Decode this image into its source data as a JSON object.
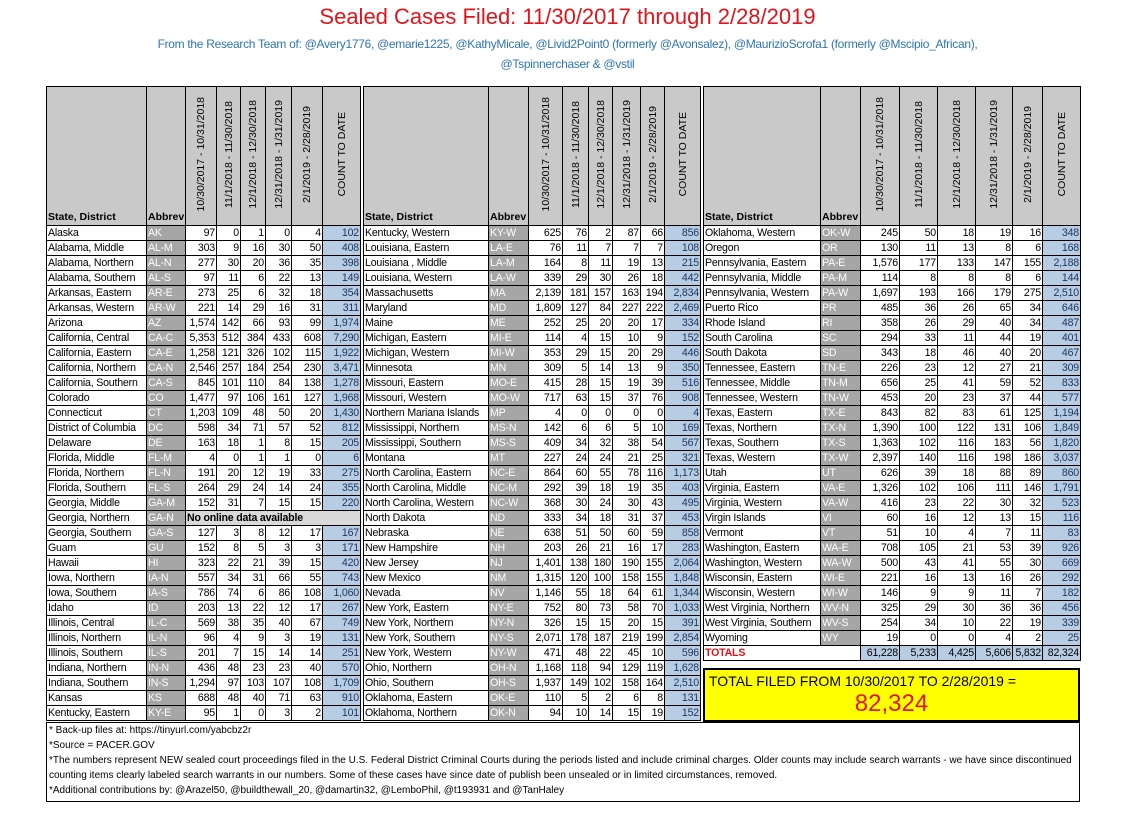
{
  "title": "Sealed Cases Filed: 11/30/2017 through 2/28/2019",
  "subtitle_line1": "From the Research Team of: @Avery1776, @emarie1225, @KathyMicale, @Livid2Point0 (formerly @Avonsalez), @MaurizioScrofa1 (formerly @Mscipio_African),",
  "subtitle_line2": "@Tspinnerchaser & @vstil",
  "columns": [
    "State, District",
    "Abbrev",
    "10/30/2017 - 10/31/2018",
    "11/1/2018 - 11/30/2018",
    "12/1/2018 - 12/30/2018",
    "12/31/2018 - 1/31/2019",
    "2/1/2019 - 2/28/2019",
    "COUNT TO DATE"
  ],
  "colors": {
    "title": "#e3131b",
    "subtitle": "#2e74b5",
    "abbrev_bg": "#a6a6a6",
    "count_bg": "#b8cce4",
    "highlight": "#ffff00"
  },
  "tables": [
    {
      "rows": [
        [
          "Alaska",
          "AK",
          "97",
          "0",
          "1",
          "0",
          "4",
          "102"
        ],
        [
          "Alabama, Middle",
          "AL-M",
          "303",
          "9",
          "16",
          "30",
          "50",
          "408"
        ],
        [
          "Alabama, Northern",
          "AL-N",
          "277",
          "30",
          "20",
          "36",
          "35",
          "398"
        ],
        [
          "Alabama, Southern",
          "AL-S",
          "97",
          "11",
          "6",
          "22",
          "13",
          "149"
        ],
        [
          "Arkansas, Eastern",
          "AR-E",
          "273",
          "25",
          "6",
          "32",
          "18",
          "354"
        ],
        [
          "Arkansas, Western",
          "AR-W",
          "221",
          "14",
          "29",
          "16",
          "31",
          "311"
        ],
        [
          "Arizona",
          "AZ",
          "1,574",
          "142",
          "66",
          "93",
          "99",
          "1,974"
        ],
        [
          "California, Central",
          "CA-C",
          "5,353",
          "512",
          "384",
          "433",
          "608",
          "7,290"
        ],
        [
          "California, Eastern",
          "CA-E",
          "1,258",
          "121",
          "326",
          "102",
          "115",
          "1,922"
        ],
        [
          "California, Northern",
          "CA-N",
          "2,546",
          "257",
          "184",
          "254",
          "230",
          "3,471"
        ],
        [
          "California, Southern",
          "CA-S",
          "845",
          "101",
          "110",
          "84",
          "138",
          "1,278"
        ],
        [
          "Colorado",
          "CO",
          "1,477",
          "97",
          "106",
          "161",
          "127",
          "1,968"
        ],
        [
          "Connecticut",
          "CT",
          "1,203",
          "109",
          "48",
          "50",
          "20",
          "1,430"
        ],
        [
          "District of Columbia",
          "DC",
          "598",
          "34",
          "71",
          "57",
          "52",
          "812"
        ],
        [
          "Delaware",
          "DE",
          "163",
          "18",
          "1",
          "8",
          "15",
          "205"
        ],
        [
          "Florida, Middle",
          "FL-M",
          "4",
          "0",
          "1",
          "1",
          "0",
          "6"
        ],
        [
          "Florida, Northern",
          "FL-N",
          "191",
          "20",
          "12",
          "19",
          "33",
          "275"
        ],
        [
          "Florida, Southern",
          "FL-S",
          "264",
          "29",
          "24",
          "14",
          "24",
          "355"
        ],
        [
          "Georgia, Middle",
          "GA-M",
          "152",
          "31",
          "7",
          "15",
          "15",
          "220"
        ],
        [
          "Georgia, Northern",
          "GA-N",
          "No online data available"
        ],
        [
          "Georgia, Southern",
          "GA-S",
          "127",
          "3",
          "8",
          "12",
          "17",
          "167"
        ],
        [
          "Guam",
          "GU",
          "152",
          "8",
          "5",
          "3",
          "3",
          "171"
        ],
        [
          "Hawaii",
          "HI",
          "323",
          "22",
          "21",
          "39",
          "15",
          "420"
        ],
        [
          "Iowa, Northern",
          "IA-N",
          "557",
          "34",
          "31",
          "66",
          "55",
          "743"
        ],
        [
          "Iowa, Southern",
          "IA-S",
          "786",
          "74",
          "6",
          "86",
          "108",
          "1,060"
        ],
        [
          "Idaho",
          "ID",
          "203",
          "13",
          "22",
          "12",
          "17",
          "267"
        ],
        [
          "Illinois, Central",
          "IL-C",
          "569",
          "38",
          "35",
          "40",
          "67",
          "749"
        ],
        [
          "Illinois, Northern",
          "IL-N",
          "96",
          "4",
          "9",
          "3",
          "19",
          "131"
        ],
        [
          "Illinois, Southern",
          "IL-S",
          "201",
          "7",
          "15",
          "14",
          "14",
          "251"
        ],
        [
          "Indiana, Northern",
          "IN-N",
          "436",
          "48",
          "23",
          "23",
          "40",
          "570"
        ],
        [
          "Indiana, Southern",
          "IN-S",
          "1,294",
          "97",
          "103",
          "107",
          "108",
          "1,709"
        ],
        [
          "Kansas",
          "KS",
          "688",
          "48",
          "40",
          "71",
          "63",
          "910"
        ],
        [
          "Kentucky, Eastern",
          "KY-E",
          "95",
          "1",
          "0",
          "3",
          "2",
          "101"
        ]
      ]
    },
    {
      "rows": [
        [
          "Kentucky, Western",
          "KY-W",
          "625",
          "76",
          "2",
          "87",
          "66",
          "856"
        ],
        [
          "Louisiana, Eastern",
          "LA-E",
          "76",
          "11",
          "7",
          "7",
          "7",
          "108"
        ],
        [
          "Louisiana , Middle",
          "LA-M",
          "164",
          "8",
          "11",
          "19",
          "13",
          "215"
        ],
        [
          "Louisiana, Western",
          "LA-W",
          "339",
          "29",
          "30",
          "26",
          "18",
          "442"
        ],
        [
          "Massachusetts",
          "MA",
          "2,139",
          "181",
          "157",
          "163",
          "194",
          "2,834"
        ],
        [
          "Maryland",
          "MD",
          "1,809",
          "127",
          "84",
          "227",
          "222",
          "2,469"
        ],
        [
          "Maine",
          "ME",
          "252",
          "25",
          "20",
          "20",
          "17",
          "334"
        ],
        [
          "Michigan, Eastern",
          "MI-E",
          "114",
          "4",
          "15",
          "10",
          "9",
          "152"
        ],
        [
          "Michigan, Western",
          "MI-W",
          "353",
          "29",
          "15",
          "20",
          "29",
          "446"
        ],
        [
          "Minnesota",
          "MN",
          "309",
          "5",
          "14",
          "13",
          "9",
          "350"
        ],
        [
          "Missouri, Eastern",
          "MO-E",
          "415",
          "28",
          "15",
          "19",
          "39",
          "516"
        ],
        [
          "Missouri, Western",
          "MO-W",
          "717",
          "63",
          "15",
          "37",
          "76",
          "908"
        ],
        [
          "Northern Mariana Islands",
          "MP",
          "4",
          "0",
          "0",
          "0",
          "0",
          "4"
        ],
        [
          "Mississippi, Northern",
          "MS-N",
          "142",
          "6",
          "6",
          "5",
          "10",
          "169"
        ],
        [
          "Mississippi, Southern",
          "MS-S",
          "409",
          "34",
          "32",
          "38",
          "54",
          "567"
        ],
        [
          "Montana",
          "MT",
          "227",
          "24",
          "24",
          "21",
          "25",
          "321"
        ],
        [
          "North Carolina, Eastern",
          "NC-E",
          "864",
          "60",
          "55",
          "78",
          "116",
          "1,173"
        ],
        [
          "North Carolina, Middle",
          "NC-M",
          "292",
          "39",
          "18",
          "19",
          "35",
          "403"
        ],
        [
          "North Carolina, Western",
          "NC-W",
          "368",
          "30",
          "24",
          "30",
          "43",
          "495"
        ],
        [
          "North Dakota",
          "ND",
          "333",
          "34",
          "18",
          "31",
          "37",
          "453"
        ],
        [
          "Nebraska",
          "NE",
          "638",
          "51",
          "50",
          "60",
          "59",
          "858"
        ],
        [
          "New Hampshire",
          "NH",
          "203",
          "26",
          "21",
          "16",
          "17",
          "283"
        ],
        [
          "New Jersey",
          "NJ",
          "1,401",
          "138",
          "180",
          "190",
          "155",
          "2,064"
        ],
        [
          "New Mexico",
          "NM",
          "1,315",
          "120",
          "100",
          "158",
          "155",
          "1,848"
        ],
        [
          "Nevada",
          "NV",
          "1,146",
          "55",
          "18",
          "64",
          "61",
          "1,344"
        ],
        [
          "New York, Eastern",
          "NY-E",
          "752",
          "80",
          "73",
          "58",
          "70",
          "1,033"
        ],
        [
          "New York, Northern",
          "NY-N",
          "326",
          "15",
          "15",
          "20",
          "15",
          "391"
        ],
        [
          "New York, Southern",
          "NY-S",
          "2,071",
          "178",
          "187",
          "219",
          "199",
          "2,854"
        ],
        [
          "New York, Western",
          "NY-W",
          "471",
          "48",
          "22",
          "45",
          "10",
          "596"
        ],
        [
          "Ohio, Northern",
          "OH-N",
          "1,168",
          "118",
          "94",
          "129",
          "119",
          "1,628"
        ],
        [
          "Ohio, Southern",
          "OH-S",
          "1,937",
          "149",
          "102",
          "158",
          "164",
          "2,510"
        ],
        [
          "Oklahoma, Eastern",
          "OK-E",
          "110",
          "5",
          "2",
          "6",
          "8",
          "131"
        ],
        [
          "Oklahoma, Northern",
          "OK-N",
          "94",
          "10",
          "14",
          "15",
          "19",
          "152"
        ]
      ]
    },
    {
      "rows": [
        [
          "Oklahoma, Western",
          "OK-W",
          "245",
          "50",
          "18",
          "19",
          "16",
          "348"
        ],
        [
          "Oregon",
          "OR",
          "130",
          "11",
          "13",
          "8",
          "6",
          "168"
        ],
        [
          "Pennsylvania, Eastern",
          "PA-E",
          "1,576",
          "177",
          "133",
          "147",
          "155",
          "2,188"
        ],
        [
          "Pennsylvania, Middle",
          "PA-M",
          "114",
          "8",
          "8",
          "8",
          "6",
          "144"
        ],
        [
          "Pennsylvania, Western",
          "PA-W",
          "1,697",
          "193",
          "166",
          "179",
          "275",
          "2,510"
        ],
        [
          "Puerto Rico",
          "PR",
          "485",
          "36",
          "26",
          "65",
          "34",
          "646"
        ],
        [
          "Rhode Island",
          "RI",
          "358",
          "26",
          "29",
          "40",
          "34",
          "487"
        ],
        [
          "South Carolina",
          "SC",
          "294",
          "33",
          "11",
          "44",
          "19",
          "401"
        ],
        [
          "South Dakota",
          "SD",
          "343",
          "18",
          "46",
          "40",
          "20",
          "467"
        ],
        [
          "Tennessee, Eastern",
          "TN-E",
          "226",
          "23",
          "12",
          "27",
          "21",
          "309"
        ],
        [
          "Tennessee, Middle",
          "TN-M",
          "656",
          "25",
          "41",
          "59",
          "52",
          "833"
        ],
        [
          "Tennessee, Western",
          "TN-W",
          "453",
          "20",
          "23",
          "37",
          "44",
          "577"
        ],
        [
          "Texas, Eastern",
          "TX-E",
          "843",
          "82",
          "83",
          "61",
          "125",
          "1,194"
        ],
        [
          "Texas, Northern",
          "TX-N",
          "1,390",
          "100",
          "122",
          "131",
          "106",
          "1,849"
        ],
        [
          "Texas, Southern",
          "TX-S",
          "1,363",
          "102",
          "116",
          "183",
          "56",
          "1,820"
        ],
        [
          "Texas, Western",
          "TX-W",
          "2,397",
          "140",
          "116",
          "198",
          "186",
          "3,037"
        ],
        [
          "Utah",
          "UT",
          "626",
          "39",
          "18",
          "88",
          "89",
          "860"
        ],
        [
          "Virginia, Eastern",
          "VA-E",
          "1,326",
          "102",
          "106",
          "111",
          "146",
          "1,791"
        ],
        [
          "Virginia, Western",
          "VA-W",
          "416",
          "23",
          "22",
          "30",
          "32",
          "523"
        ],
        [
          "Virgin Islands",
          "VI",
          "60",
          "16",
          "12",
          "13",
          "15",
          "116"
        ],
        [
          "Vermont",
          "VT",
          "51",
          "10",
          "4",
          "7",
          "11",
          "83"
        ],
        [
          "Washington, Eastern",
          "WA-E",
          "708",
          "105",
          "21",
          "53",
          "39",
          "926"
        ],
        [
          "Washington, Western",
          "WA-W",
          "500",
          "43",
          "41",
          "55",
          "30",
          "669"
        ],
        [
          "Wisconsin, Eastern",
          "WI-E",
          "221",
          "16",
          "13",
          "16",
          "26",
          "292"
        ],
        [
          "Wisconsin, Western",
          "WI-W",
          "146",
          "9",
          "9",
          "11",
          "7",
          "182"
        ],
        [
          "West Virginia, Northern",
          "WV-N",
          "325",
          "29",
          "30",
          "36",
          "36",
          "456"
        ],
        [
          "West Virginia, Southern",
          "WV-S",
          "254",
          "34",
          "10",
          "22",
          "19",
          "339"
        ],
        [
          "Wyoming",
          "WY",
          "19",
          "0",
          "0",
          "4",
          "2",
          "25"
        ]
      ],
      "totals": {
        "label": "TOTALS",
        "values": [
          "61,228",
          "5,233",
          "4,425",
          "5,606",
          "5,832",
          "82,324"
        ]
      }
    }
  ],
  "grand_total": {
    "label": "TOTAL FILED FROM 10/30/2017 TO 2/28/2019 =",
    "value": "82,324"
  },
  "notes": [
    "* Back-up files at: https://tinyurl.com/yabcbz2r",
    "*Source = PACER.GOV",
    "*The numbers represent NEW sealed court proceedings filed in the U.S. Federal District Criminal Courts during the periods listed and include criminal charges. Older counts may include search warrants - we have since discontinued counting items clearly labeled search warrants in our numbers. Some of these cases have since date of publish been unsealed or in limited circumstances, removed.",
    "*Additional contributions by: @Arazel50, @buildthewall_20, @damartin32, @LemboPhil, @t193931 and @TanHaley"
  ]
}
